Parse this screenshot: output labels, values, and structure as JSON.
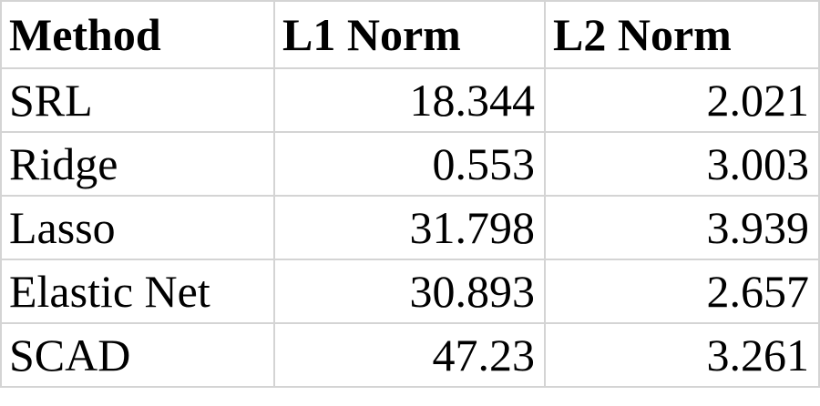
{
  "table": {
    "headers": [
      "Method",
      "L1 Norm",
      "L2 Norm"
    ],
    "rows": [
      {
        "method": "SRL",
        "l1": "18.344",
        "l2": "2.021"
      },
      {
        "method": "Ridge",
        "l1": "0.553",
        "l2": "3.003"
      },
      {
        "method": "Lasso",
        "l1": "31.798",
        "l2": "3.939"
      },
      {
        "method": "Elastic Net",
        "l1": "30.893",
        "l2": "2.657"
      },
      {
        "method": "SCAD",
        "l1": "47.23",
        "l2": "3.261"
      }
    ]
  }
}
